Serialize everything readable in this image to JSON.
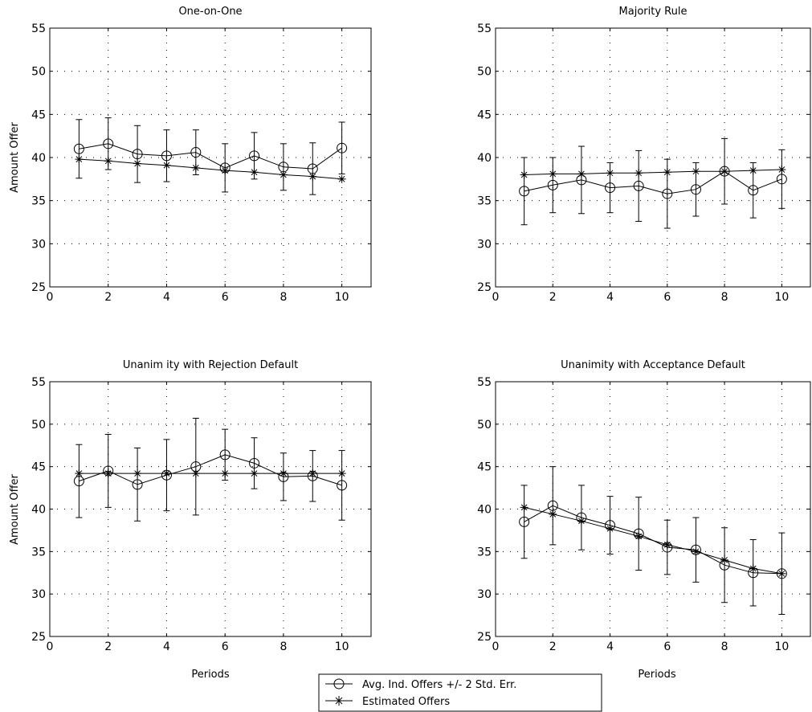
{
  "chart_data": [
    {
      "type": "line",
      "title": "One-on-One",
      "xlabel": "",
      "ylabel": "Amount Offer",
      "xlim": [
        0,
        11
      ],
      "ylim": [
        25,
        55
      ],
      "xticks": [
        0,
        2,
        4,
        6,
        8,
        10
      ],
      "yticks": [
        25,
        30,
        35,
        40,
        45,
        50,
        55
      ],
      "grid": true,
      "x": [
        1,
        2,
        3,
        4,
        5,
        6,
        7,
        8,
        9,
        10
      ],
      "series": [
        {
          "name": "Avg. Ind. Offers +/- 2 Std. Err.",
          "marker": "circle",
          "values": [
            41.0,
            41.6,
            40.4,
            40.2,
            40.6,
            38.8,
            40.2,
            38.9,
            38.7,
            41.1
          ],
          "err": [
            3.4,
            3.0,
            3.3,
            3.0,
            2.6,
            2.8,
            2.7,
            2.7,
            3.0,
            3.0
          ]
        },
        {
          "name": "Estimated Offers",
          "marker": "star",
          "values": [
            39.8,
            39.6,
            39.3,
            39.1,
            38.8,
            38.5,
            38.3,
            38.0,
            37.8,
            37.5
          ]
        }
      ]
    },
    {
      "type": "line",
      "title": "Majority Rule",
      "xlabel": "",
      "ylabel": "",
      "xlim": [
        0,
        11
      ],
      "ylim": [
        25,
        55
      ],
      "xticks": [
        0,
        2,
        4,
        6,
        8,
        10
      ],
      "yticks": [
        25,
        30,
        35,
        40,
        45,
        50,
        55
      ],
      "grid": true,
      "x": [
        1,
        2,
        3,
        4,
        5,
        6,
        7,
        8,
        9,
        10
      ],
      "series": [
        {
          "name": "Avg. Ind. Offers +/- 2 Std. Err.",
          "marker": "circle",
          "values": [
            36.1,
            36.8,
            37.4,
            36.5,
            36.7,
            35.8,
            36.3,
            38.4,
            36.2,
            37.5
          ],
          "err": [
            3.9,
            3.2,
            3.9,
            2.9,
            4.1,
            4.0,
            3.1,
            3.8,
            3.2,
            3.4
          ]
        },
        {
          "name": "Estimated Offers",
          "marker": "star",
          "values": [
            38.0,
            38.1,
            38.1,
            38.2,
            38.2,
            38.3,
            38.4,
            38.4,
            38.5,
            38.6
          ]
        }
      ]
    },
    {
      "type": "line",
      "title": "Unanim ity with Rejection Default",
      "xlabel": "Periods",
      "ylabel": "Amount Offer",
      "xlim": [
        0,
        11
      ],
      "ylim": [
        25,
        55
      ],
      "xticks": [
        0,
        2,
        4,
        6,
        8,
        10
      ],
      "yticks": [
        25,
        30,
        35,
        40,
        45,
        50,
        55
      ],
      "grid": true,
      "x": [
        1,
        2,
        3,
        4,
        5,
        6,
        7,
        8,
        9,
        10
      ],
      "series": [
        {
          "name": "Avg. Ind. Offers +/- 2 Std. Err.",
          "marker": "circle",
          "values": [
            43.3,
            44.5,
            42.9,
            44.0,
            45.0,
            46.4,
            45.4,
            43.8,
            43.9,
            42.8
          ],
          "err": [
            4.3,
            4.3,
            4.3,
            4.2,
            5.7,
            3.0,
            3.0,
            2.8,
            3.0,
            4.1
          ]
        },
        {
          "name": "Estimated Offers",
          "marker": "star",
          "values": [
            44.2,
            44.2,
            44.2,
            44.2,
            44.2,
            44.2,
            44.2,
            44.2,
            44.2,
            44.2
          ]
        }
      ]
    },
    {
      "type": "line",
      "title": "Unanimity with Acceptance Default",
      "xlabel": "Periods",
      "ylabel": "",
      "xlim": [
        0,
        11
      ],
      "ylim": [
        25,
        55
      ],
      "xticks": [
        0,
        2,
        4,
        6,
        8,
        10
      ],
      "yticks": [
        25,
        30,
        35,
        40,
        45,
        50,
        55
      ],
      "grid": true,
      "x": [
        1,
        2,
        3,
        4,
        5,
        6,
        7,
        8,
        9,
        10
      ],
      "series": [
        {
          "name": "Avg. Ind. Offers +/- 2 Std. Err.",
          "marker": "circle",
          "values": [
            38.5,
            40.4,
            39.0,
            38.1,
            37.1,
            35.5,
            35.2,
            33.4,
            32.5,
            32.4
          ],
          "err": [
            4.3,
            4.6,
            3.8,
            3.4,
            4.3,
            3.2,
            3.8,
            4.4,
            3.9,
            4.8
          ]
        },
        {
          "name": "Estimated Offers",
          "marker": "star",
          "values": [
            40.2,
            39.4,
            38.6,
            37.7,
            36.8,
            35.8,
            35.0,
            34.0,
            33.0,
            32.4
          ]
        }
      ]
    }
  ],
  "legend": {
    "entries": [
      {
        "label": "Avg. Ind. Offers +/- 2 Std. Err.",
        "marker": "circle"
      },
      {
        "label": "Estimated Offers",
        "marker": "star"
      }
    ]
  }
}
